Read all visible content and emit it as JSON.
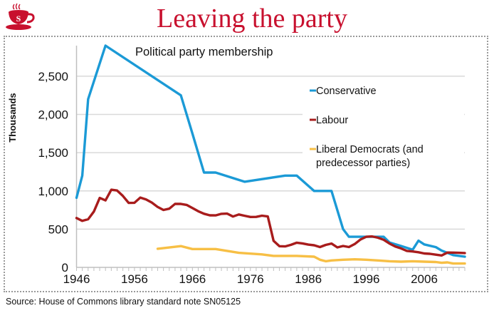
{
  "header": {
    "title": "Leaving the party",
    "logo_letter": "S",
    "logo_icon": "teacup-icon"
  },
  "colors": {
    "brand": "#c8102e",
    "conservative": "#1b9ad6",
    "labour": "#a81c1c",
    "libdem": "#f7bf45",
    "grid": "#d9d9d9"
  },
  "source": "Source: House of Commons library standard note SN05125",
  "chart_data": {
    "type": "line",
    "title": "Political party membership",
    "xlabel": "",
    "ylabel": "Thousands",
    "xlim": [
      1946,
      2013
    ],
    "ylim": [
      0,
      2900
    ],
    "x_ticks": [
      1946,
      1956,
      1966,
      1976,
      1986,
      1996,
      2006
    ],
    "x_tick_labels": [
      "1946",
      "1956",
      "1966",
      "1976",
      "1986",
      "1996",
      "2006"
    ],
    "y_ticks": [
      0,
      500,
      1000,
      1500,
      2000,
      2500
    ],
    "y_tick_labels": [
      "0",
      "500",
      "1,000",
      "1,500",
      "2,000",
      "2,500"
    ],
    "grid": true,
    "legend_position": "right",
    "series": [
      {
        "name": "Conservative",
        "color_key": "conservative",
        "points": [
          [
            1946,
            910
          ],
          [
            1947,
            1200
          ],
          [
            1948,
            2200
          ],
          [
            1951,
            2900
          ],
          [
            1964,
            2250
          ],
          [
            1966,
            1750
          ],
          [
            1968,
            1240
          ],
          [
            1970,
            1240
          ],
          [
            1975,
            1120
          ],
          [
            1982,
            1200
          ],
          [
            1984,
            1200
          ],
          [
            1987,
            1000
          ],
          [
            1990,
            1000
          ],
          [
            1992,
            500
          ],
          [
            1993,
            400
          ],
          [
            1998,
            400
          ],
          [
            1999,
            400
          ],
          [
            2000,
            325
          ],
          [
            2002,
            280
          ],
          [
            2004,
            230
          ],
          [
            2005,
            350
          ],
          [
            2006,
            300
          ],
          [
            2008,
            265
          ],
          [
            2009,
            220
          ],
          [
            2011,
            160
          ],
          [
            2013,
            140
          ]
        ]
      },
      {
        "name": "Labour",
        "color_key": "labour",
        "points": [
          [
            1946,
            645
          ],
          [
            1947,
            608
          ],
          [
            1948,
            629
          ],
          [
            1949,
            730
          ],
          [
            1950,
            908
          ],
          [
            1951,
            876
          ],
          [
            1952,
            1015
          ],
          [
            1953,
            1005
          ],
          [
            1954,
            934
          ],
          [
            1955,
            843
          ],
          [
            1956,
            845
          ],
          [
            1957,
            913
          ],
          [
            1958,
            889
          ],
          [
            1959,
            848
          ],
          [
            1960,
            790
          ],
          [
            1961,
            751
          ],
          [
            1962,
            767
          ],
          [
            1963,
            830
          ],
          [
            1964,
            830
          ],
          [
            1965,
            817
          ],
          [
            1966,
            776
          ],
          [
            1967,
            734
          ],
          [
            1968,
            701
          ],
          [
            1969,
            681
          ],
          [
            1970,
            680
          ],
          [
            1971,
            700
          ],
          [
            1972,
            703
          ],
          [
            1973,
            665
          ],
          [
            1974,
            692
          ],
          [
            1975,
            675
          ],
          [
            1976,
            659
          ],
          [
            1977,
            660
          ],
          [
            1978,
            676
          ],
          [
            1979,
            666
          ],
          [
            1980,
            348
          ],
          [
            1981,
            277
          ],
          [
            1982,
            274
          ],
          [
            1983,
            295
          ],
          [
            1984,
            323
          ],
          [
            1985,
            313
          ],
          [
            1986,
            297
          ],
          [
            1987,
            289
          ],
          [
            1988,
            266
          ],
          [
            1989,
            294
          ],
          [
            1990,
            311
          ],
          [
            1991,
            261
          ],
          [
            1992,
            280
          ],
          [
            1993,
            266
          ],
          [
            1994,
            305
          ],
          [
            1995,
            365
          ],
          [
            1996,
            400
          ],
          [
            1997,
            405
          ],
          [
            1998,
            388
          ],
          [
            1999,
            361
          ],
          [
            2000,
            311
          ],
          [
            2001,
            272
          ],
          [
            2002,
            248
          ],
          [
            2003,
            215
          ],
          [
            2004,
            208
          ],
          [
            2005,
            198
          ],
          [
            2006,
            182
          ],
          [
            2007,
            177
          ],
          [
            2008,
            166
          ],
          [
            2009,
            156
          ],
          [
            2010,
            194
          ],
          [
            2011,
            193
          ],
          [
            2012,
            190
          ],
          [
            2013,
            187
          ]
        ]
      },
      {
        "name": "Liberal Democrats (and predecessor parties)",
        "legend_lines": [
          "Liberal Democrats (and",
          "predecessor parties)"
        ],
        "color_key": "libdem",
        "points": [
          [
            1960,
            243
          ],
          [
            1964,
            278
          ],
          [
            1966,
            240
          ],
          [
            1970,
            240
          ],
          [
            1974,
            190
          ],
          [
            1978,
            170
          ],
          [
            1980,
            150
          ],
          [
            1984,
            150
          ],
          [
            1987,
            140
          ],
          [
            1988,
            100
          ],
          [
            1989,
            80
          ],
          [
            1990,
            90
          ],
          [
            1992,
            100
          ],
          [
            1994,
            105
          ],
          [
            1996,
            100
          ],
          [
            1997,
            95
          ],
          [
            1998,
            90
          ],
          [
            2000,
            80
          ],
          [
            2002,
            75
          ],
          [
            2004,
            80
          ],
          [
            2006,
            75
          ],
          [
            2008,
            70
          ],
          [
            2009,
            60
          ],
          [
            2010,
            65
          ],
          [
            2011,
            50
          ],
          [
            2013,
            50
          ]
        ]
      }
    ]
  }
}
